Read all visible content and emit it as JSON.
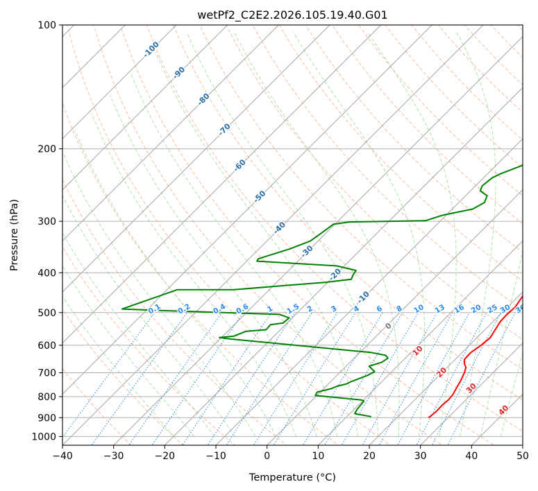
{
  "chart_data": {
    "type": "line",
    "title": "wetPf2_C2E2.2026.105.19.40.G01",
    "xlabel": "Temperature (°C)",
    "ylabel": "Pressure (hPa)",
    "xlim": [
      -40,
      50
    ],
    "ylim": [
      1050,
      100
    ],
    "x_ticks": [
      {
        "value": -40,
        "label": "−40"
      },
      {
        "value": -30,
        "label": "−30"
      },
      {
        "value": -20,
        "label": "−20"
      },
      {
        "value": -10,
        "label": "−10"
      },
      {
        "value": 0,
        "label": "0"
      },
      {
        "value": 10,
        "label": "10"
      },
      {
        "value": 20,
        "label": "20"
      },
      {
        "value": 30,
        "label": "30"
      },
      {
        "value": 40,
        "label": "40"
      },
      {
        "value": 50,
        "label": "50"
      }
    ],
    "y_ticks": [
      {
        "value": 100,
        "label": "100"
      },
      {
        "value": 200,
        "label": "200"
      },
      {
        "value": 300,
        "label": "300"
      },
      {
        "value": 400,
        "label": "400"
      },
      {
        "value": 500,
        "label": "500"
      },
      {
        "value": 600,
        "label": "600"
      },
      {
        "value": 700,
        "label": "700"
      },
      {
        "value": 800,
        "label": "800"
      },
      {
        "value": 900,
        "label": "900"
      },
      {
        "value": 1000,
        "label": "1000"
      }
    ],
    "colors": {
      "temperature": "#ff0000",
      "dewpoint": "#008000",
      "isotherm": "#999999",
      "dry_adiabat": "#f4a582",
      "moist_adiabat": "#a1d99b",
      "mixing_ratio": "#2b8ce6",
      "isotherm_label": "#2c6ea3",
      "moist_label": "#d62728",
      "zero_label": "#777777",
      "frame": "#000000"
    },
    "series": [
      {
        "name": "Temperature",
        "points": [
          [
            26.2,
            900
          ],
          [
            26.5,
            870
          ],
          [
            26.4,
            840
          ],
          [
            26.6,
            815
          ],
          [
            26.4,
            790
          ],
          [
            25.8,
            760
          ],
          [
            25.2,
            730
          ],
          [
            24.4,
            700
          ],
          [
            23.7,
            680
          ],
          [
            22.6,
            665
          ],
          [
            21.8,
            650
          ],
          [
            21.7,
            625
          ],
          [
            22.3,
            600
          ],
          [
            22.6,
            575
          ],
          [
            22.0,
            550
          ],
          [
            21.4,
            525
          ],
          [
            21.3,
            505
          ],
          [
            21.5,
            485
          ],
          [
            20.9,
            460
          ],
          [
            20.5,
            440
          ],
          [
            19.8,
            420
          ],
          [
            19.1,
            400
          ],
          [
            18.3,
            380
          ],
          [
            17.2,
            365
          ],
          [
            16.5,
            345
          ],
          [
            15.9,
            330
          ],
          [
            15.2,
            310
          ],
          [
            14.2,
            295
          ],
          [
            12.8,
            283
          ],
          [
            11.2,
            270
          ],
          [
            9.6,
            257
          ],
          [
            7.3,
            238
          ],
          [
            5.7,
            225
          ],
          [
            5.2,
            210
          ],
          [
            4.8,
            195
          ],
          [
            3.8,
            180
          ],
          [
            2.6,
            165
          ],
          [
            1.3,
            150
          ],
          [
            0.3,
            138
          ],
          [
            0.5,
            128
          ],
          [
            1.0,
            120
          ],
          [
            0.6,
            112
          ],
          [
            -0.3,
            106
          ],
          [
            -0.5,
            100
          ]
        ]
      },
      {
        "name": "Dewpoint",
        "points": [
          [
            14.8,
            895
          ],
          [
            11.0,
            880
          ],
          [
            10.6,
            860
          ],
          [
            10.3,
            820
          ],
          [
            9.6,
            815
          ],
          [
            -0.3,
            795
          ],
          [
            -0.6,
            780
          ],
          [
            1.5,
            765
          ],
          [
            2.1,
            755
          ],
          [
            3.5,
            745
          ],
          [
            4.0,
            735
          ],
          [
            6.0,
            710
          ],
          [
            6.6,
            695
          ],
          [
            4.5,
            675
          ],
          [
            6.2,
            660
          ],
          [
            6.6,
            645
          ],
          [
            5.6,
            635
          ],
          [
            2.2,
            625
          ],
          [
            -27.7,
            580
          ],
          [
            -30.4,
            575
          ],
          [
            -27.8,
            570
          ],
          [
            -26.4,
            555
          ],
          [
            -22.8,
            550
          ],
          [
            -22.9,
            535
          ],
          [
            -20.8,
            530
          ],
          [
            -20.6,
            515
          ],
          [
            -23.1,
            505
          ],
          [
            -45.0,
            495
          ],
          [
            -55.0,
            490
          ],
          [
            -48.0,
            440
          ],
          [
            -37.0,
            440
          ],
          [
            -28.0,
            430
          ],
          [
            -20.5,
            422
          ],
          [
            -16.0,
            415
          ],
          [
            -16.5,
            405
          ],
          [
            -16.8,
            395
          ],
          [
            -21.5,
            385
          ],
          [
            -38.0,
            375
          ],
          [
            -38.2,
            370
          ],
          [
            -34.0,
            350
          ],
          [
            -31.5,
            335
          ],
          [
            -30.8,
            318
          ],
          [
            -30.3,
            305
          ],
          [
            -27.5,
            301
          ],
          [
            -13.0,
            299
          ],
          [
            -10.7,
            290
          ],
          [
            -6.0,
            280
          ],
          [
            -5.0,
            270
          ],
          [
            -5.8,
            260
          ],
          [
            -8.1,
            253
          ],
          [
            -8.7,
            246
          ],
          [
            -8.3,
            235
          ],
          [
            -7.5,
            230
          ],
          [
            -5.0,
            220
          ],
          [
            -4.1,
            210
          ],
          [
            -3.6,
            200
          ],
          [
            -4.2,
            190
          ],
          [
            -5.7,
            175
          ],
          [
            -5.7,
            165
          ],
          [
            -4.5,
            155
          ],
          [
            -4.2,
            145
          ],
          [
            -2.2,
            137
          ],
          [
            -1.8,
            130
          ],
          [
            -1.0,
            127
          ],
          [
            -0.8,
            120
          ],
          [
            -1.6,
            113
          ],
          [
            -1.9,
            106
          ],
          [
            -1.8,
            100
          ]
        ]
      }
    ],
    "isotherm_labels": [
      {
        "value": -100,
        "label": "-100",
        "at_pressure": 115
      },
      {
        "value": -90,
        "label": "-90",
        "at_pressure": 131
      },
      {
        "value": -80,
        "label": "-80",
        "at_pressure": 152
      },
      {
        "value": -70,
        "label": "-70",
        "at_pressure": 180
      },
      {
        "value": -60,
        "label": "-60",
        "at_pressure": 220
      },
      {
        "value": -50,
        "label": "-50",
        "at_pressure": 262
      },
      {
        "value": -40,
        "label": "-40",
        "at_pressure": 312
      },
      {
        "value": -30,
        "label": "-30",
        "at_pressure": 356
      },
      {
        "value": -20,
        "label": "-20",
        "at_pressure": 405
      },
      {
        "value": -10,
        "label": "-10",
        "at_pressure": 460
      }
    ],
    "moist_adiabat_labels": [
      {
        "value": 0,
        "label": "0",
        "x": 23.8,
        "p": 540
      },
      {
        "value": 10,
        "label": "10",
        "x": 29.5,
        "p": 620
      },
      {
        "value": 20,
        "label": "20",
        "x": 34.2,
        "p": 700
      },
      {
        "value": 30,
        "label": "30",
        "x": 40.0,
        "p": 765
      },
      {
        "value": 40,
        "label": "40",
        "x": 46.3,
        "p": 865
      }
    ],
    "mixing_ratio_labels": [
      {
        "label": "0.1",
        "x": -22.0
      },
      {
        "label": "0.2",
        "x": -16.2
      },
      {
        "label": "0.4",
        "x": -9.3
      },
      {
        "label": "0.6",
        "x": -4.8
      },
      {
        "label": "1",
        "x": 0.6
      },
      {
        "label": "1.5",
        "x": 5.1
      },
      {
        "label": "2",
        "x": 8.4
      },
      {
        "label": "3",
        "x": 13.1
      },
      {
        "label": "4",
        "x": 17.5
      },
      {
        "label": "6",
        "x": 22.0
      },
      {
        "label": "8",
        "x": 25.9
      },
      {
        "label": "10",
        "x": 29.7
      },
      {
        "label": "13",
        "x": 33.8
      },
      {
        "label": "16",
        "x": 37.6
      },
      {
        "label": "20",
        "x": 40.9
      },
      {
        "label": "25",
        "x": 44.1
      },
      {
        "label": "30",
        "x": 46.6
      },
      {
        "label": "36",
        "x": 49.6
      }
    ],
    "grid": true
  }
}
